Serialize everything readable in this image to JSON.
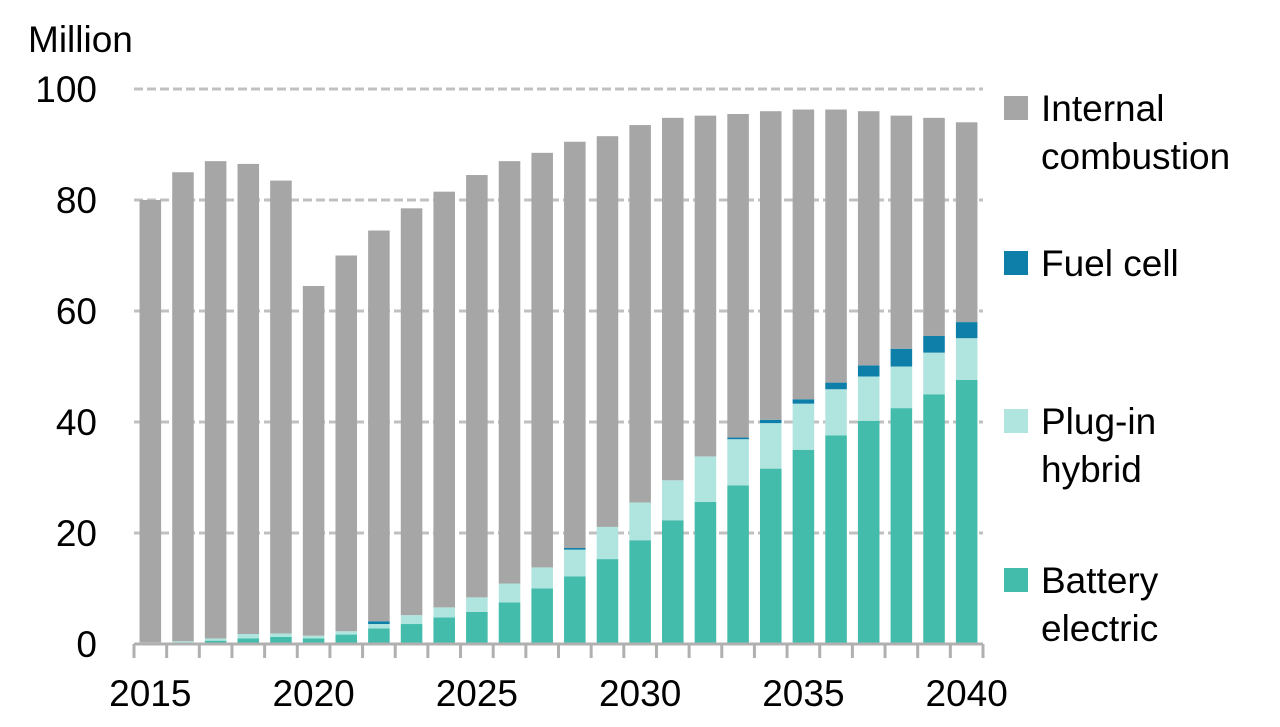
{
  "chart_data": {
    "type": "bar",
    "stacked": true,
    "title": "",
    "unit_label": "Million",
    "xlabel": "",
    "ylabel": "Million",
    "ylim": [
      0,
      100
    ],
    "yticks": [
      0,
      20,
      40,
      60,
      80,
      100
    ],
    "grid": "horizontal dashed",
    "legend_position": "right",
    "x": [
      2015,
      2016,
      2017,
      2018,
      2019,
      2020,
      2021,
      2022,
      2023,
      2024,
      2025,
      2026,
      2027,
      2028,
      2029,
      2030,
      2031,
      2032,
      2033,
      2034,
      2035,
      2036,
      2037,
      2038,
      2039,
      2040
    ],
    "xtick_labels": [
      "2015",
      "2020",
      "2025",
      "2030",
      "2035",
      "2040"
    ],
    "series": [
      {
        "name": "Battery electric",
        "color": "#44bcab",
        "values": [
          0.2,
          0.3,
          0.6,
          1.0,
          1.3,
          1.0,
          1.7,
          2.8,
          3.6,
          4.8,
          5.8,
          7.5,
          10.0,
          12.2,
          15.3,
          18.7,
          22.3,
          25.6,
          28.6,
          31.6,
          35.0,
          37.6,
          40.2,
          42.5,
          45.0,
          47.6
        ]
      },
      {
        "name": "Plug-in hybrid",
        "color": "#b0e4df",
        "values": [
          0.1,
          0.2,
          0.4,
          0.8,
          0.6,
          0.5,
          0.6,
          0.8,
          1.6,
          1.8,
          2.6,
          3.4,
          3.8,
          4.8,
          5.8,
          6.8,
          7.2,
          8.2,
          8.3,
          8.2,
          8.3,
          8.3,
          8.0,
          7.5,
          7.5,
          7.5
        ]
      },
      {
        "name": "Fuel cell",
        "color": "#0e7fa8",
        "values": [
          0,
          0,
          0,
          0,
          0,
          0,
          0,
          0.5,
          0,
          0,
          0,
          0,
          0,
          0.3,
          0,
          0,
          0,
          0,
          0.3,
          0.6,
          0.8,
          1.2,
          2.0,
          3.2,
          3.0,
          2.9
        ]
      },
      {
        "name": "Internal combustion",
        "color": "#a6a6a6",
        "values": [
          79.7,
          84.5,
          86.0,
          84.7,
          81.6,
          63.0,
          67.7,
          70.4,
          73.3,
          74.9,
          76.1,
          76.1,
          74.7,
          73.2,
          70.4,
          68.0,
          65.3,
          61.4,
          58.3,
          55.6,
          52.2,
          49.2,
          45.8,
          42.0,
          39.3,
          36.0
        ]
      }
    ]
  },
  "legend": {
    "items": [
      {
        "label": "Internal\ncombustion",
        "color": "#a6a6a6"
      },
      {
        "label": "Fuel cell",
        "color": "#0e7fa8"
      },
      {
        "label": "Plug-in\nhybrid",
        "color": "#b0e4df"
      },
      {
        "label": "Battery\nelectric",
        "color": "#44bcab"
      }
    ]
  }
}
